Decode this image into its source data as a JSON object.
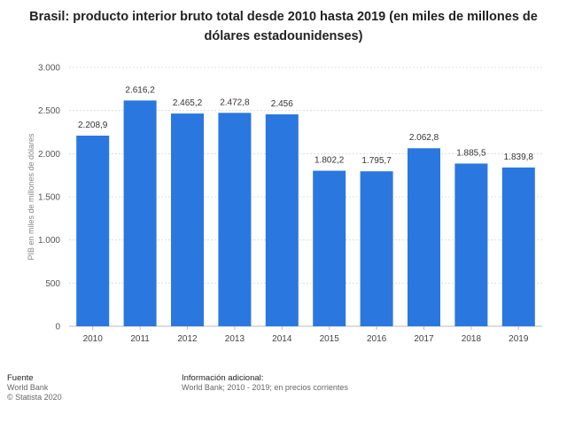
{
  "chart_data": {
    "type": "bar",
    "title_lines": [
      "Brasil: producto interior bruto total desde 2010 hasta 2019 (en miles de millones de",
      "dólares estadounidenses)"
    ],
    "categories": [
      "2010",
      "2011",
      "2012",
      "2013",
      "2014",
      "2015",
      "2016",
      "2017",
      "2018",
      "2019"
    ],
    "values": [
      2208.9,
      2616.2,
      2465.2,
      2472.8,
      2456,
      1802.2,
      1795.7,
      2062.8,
      1885.5,
      1839.8
    ],
    "value_labels": [
      "2.208,9",
      "2.616,2",
      "2.465,2",
      "2.472,8",
      "2.456",
      "1.802,2",
      "1.795,7",
      "2.062,8",
      "1.885,5",
      "1.839,8"
    ],
    "ylabel": "PIB en miles de millones de dólares",
    "xlabel": "",
    "ylim": [
      0,
      3000
    ],
    "yticks": [
      0,
      500,
      1000,
      1500,
      2000,
      2500,
      3000
    ],
    "ytick_labels": [
      "0",
      "500",
      "1.000",
      "1.500",
      "2.000",
      "2.500",
      "3.000"
    ],
    "grid": true,
    "bar_color": "#2a77e0"
  },
  "footer": {
    "source_heading": "Fuente",
    "source_name": "World Bank",
    "copyright": "© Statista 2020",
    "info_heading": "Información adicional:",
    "info_text": "World Bank; 2010 - 2019; en precios corrientes"
  }
}
